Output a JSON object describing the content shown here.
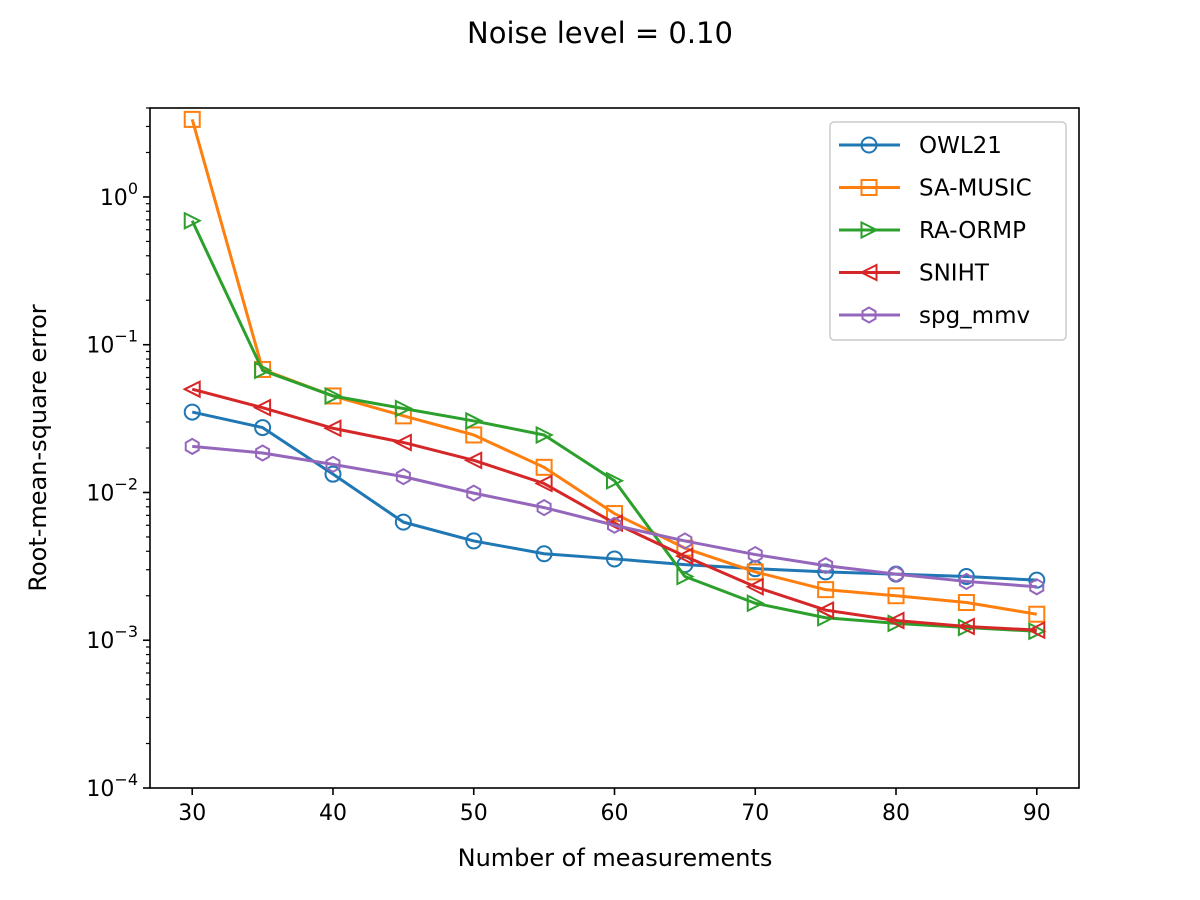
{
  "chart_data": {
    "type": "line",
    "title": "Noise level = 0.10",
    "xlabel": "Number of measurements",
    "ylabel": "Root-mean-square error",
    "yscale": "log",
    "xlim": [
      27,
      93
    ],
    "ylim": [
      0.0001,
      4
    ],
    "xticks": [
      30,
      40,
      50,
      60,
      70,
      80,
      90
    ],
    "yticks": [
      {
        "value": 1,
        "base": "10",
        "exp": "0"
      },
      {
        "value": 0.1,
        "base": "10",
        "exp": "−1"
      },
      {
        "value": 0.01,
        "base": "10",
        "exp": "−2"
      },
      {
        "value": 0.001,
        "base": "10",
        "exp": "−3"
      },
      {
        "value": 0.0001,
        "base": "10",
        "exp": "−4"
      }
    ],
    "legend_position": "top-right",
    "x": [
      30,
      35,
      40,
      45,
      50,
      55,
      60,
      65,
      70,
      75,
      80,
      85,
      90
    ],
    "series": [
      {
        "name": "OWL21",
        "color": "#1f77b4",
        "marker": "circle",
        "values": [
          0.035,
          0.0275,
          0.0133,
          0.0063,
          0.0047,
          0.00385,
          0.00355,
          0.00325,
          0.00305,
          0.0029,
          0.0028,
          0.0027,
          0.00255
        ]
      },
      {
        "name": "SA-MUSIC",
        "color": "#ff7f0e",
        "marker": "square",
        "values": [
          3.35,
          0.068,
          0.045,
          0.033,
          0.0245,
          0.0148,
          0.0072,
          0.0042,
          0.0029,
          0.0022,
          0.002,
          0.0018,
          0.0015
        ]
      },
      {
        "name": "RA-ORMP",
        "color": "#2ca02c",
        "marker": "triangle-right",
        "values": [
          0.69,
          0.067,
          0.045,
          0.037,
          0.0305,
          0.0245,
          0.012,
          0.0027,
          0.00178,
          0.00142,
          0.0013,
          0.00122,
          0.00115
        ]
      },
      {
        "name": "SNIHT",
        "color": "#d62728",
        "marker": "triangle-left",
        "values": [
          0.05,
          0.0375,
          0.0272,
          0.0218,
          0.0165,
          0.0115,
          0.0062,
          0.0037,
          0.0023,
          0.0016,
          0.00136,
          0.00124,
          0.00117
        ]
      },
      {
        "name": "spg_mmv",
        "color": "#9467bd",
        "marker": "hexagon",
        "values": [
          0.0205,
          0.0185,
          0.0155,
          0.0128,
          0.0099,
          0.0079,
          0.006,
          0.0047,
          0.0038,
          0.0032,
          0.0028,
          0.0025,
          0.0023
        ]
      }
    ]
  }
}
